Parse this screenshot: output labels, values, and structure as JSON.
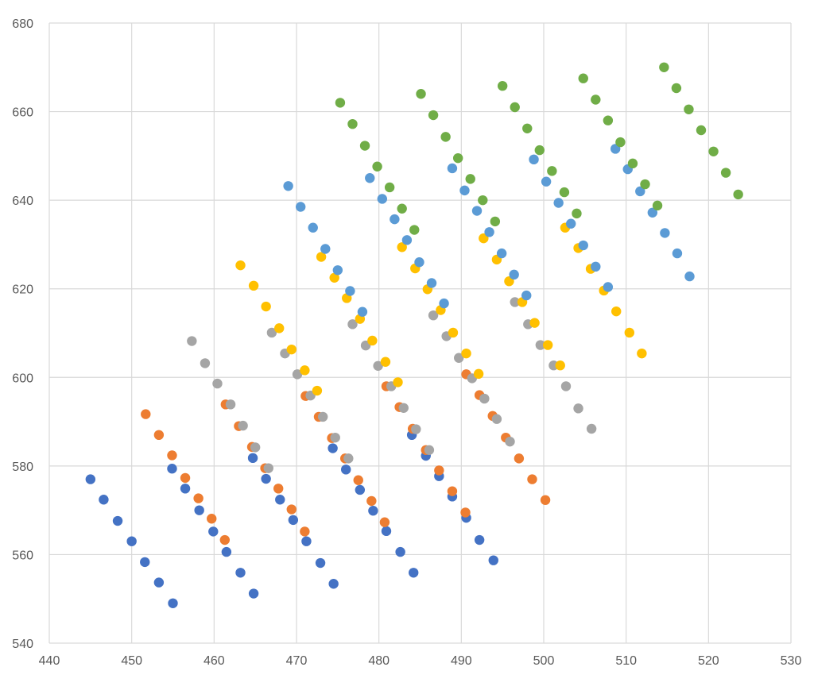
{
  "chart_data": {
    "type": "scatter",
    "title": "",
    "xlabel": "",
    "ylabel": "",
    "xlim": [
      440,
      530
    ],
    "ylim": [
      540,
      680
    ],
    "x_ticks": [
      440,
      450,
      460,
      470,
      480,
      490,
      500,
      510,
      520,
      530
    ],
    "y_ticks": [
      540,
      560,
      580,
      600,
      620,
      640,
      660,
      680
    ],
    "grid": true,
    "legend": "none",
    "series": [
      {
        "color": "#4472c4",
        "points": [
          [
            445.0,
            577.0
          ],
          [
            446.6,
            572.4
          ],
          [
            448.3,
            567.6
          ],
          [
            450.0,
            563.0
          ],
          [
            451.6,
            558.3
          ],
          [
            453.3,
            553.7
          ],
          [
            455.0,
            549.0
          ],
          [
            454.9,
            579.4
          ],
          [
            456.5,
            574.9
          ],
          [
            458.2,
            570.0
          ],
          [
            459.9,
            565.2
          ],
          [
            461.5,
            560.6
          ],
          [
            463.2,
            555.9
          ],
          [
            464.8,
            551.2
          ],
          [
            464.7,
            581.8
          ],
          [
            466.3,
            577.1
          ],
          [
            468.0,
            572.4
          ],
          [
            469.6,
            567.8
          ],
          [
            471.2,
            563.0
          ],
          [
            472.9,
            558.1
          ],
          [
            474.5,
            553.4
          ],
          [
            474.4,
            584.0
          ],
          [
            476.0,
            579.2
          ],
          [
            477.7,
            574.6
          ],
          [
            479.3,
            569.9
          ],
          [
            480.9,
            565.3
          ],
          [
            482.6,
            560.6
          ],
          [
            484.2,
            555.9
          ],
          [
            484.0,
            587.0
          ],
          [
            485.7,
            582.3
          ],
          [
            487.3,
            577.7
          ],
          [
            488.9,
            573.1
          ],
          [
            490.6,
            568.3
          ],
          [
            492.2,
            563.3
          ],
          [
            493.9,
            558.7
          ]
        ]
      },
      {
        "color": "#ed7d31",
        "points": [
          [
            451.7,
            591.7
          ],
          [
            453.3,
            587.0
          ],
          [
            454.9,
            582.4
          ],
          [
            456.5,
            577.3
          ],
          [
            458.1,
            572.7
          ],
          [
            459.7,
            568.1
          ],
          [
            461.3,
            563.3
          ],
          [
            461.4,
            593.9
          ],
          [
            463.0,
            589.0
          ],
          [
            464.6,
            584.3
          ],
          [
            466.2,
            579.5
          ],
          [
            467.8,
            574.9
          ],
          [
            469.4,
            570.2
          ],
          [
            471.0,
            565.2
          ],
          [
            471.1,
            595.8
          ],
          [
            472.7,
            591.1
          ],
          [
            474.3,
            586.3
          ],
          [
            475.9,
            581.7
          ],
          [
            477.5,
            576.8
          ],
          [
            479.1,
            572.1
          ],
          [
            480.7,
            567.3
          ],
          [
            480.9,
            598.0
          ],
          [
            482.5,
            593.3
          ],
          [
            484.1,
            588.4
          ],
          [
            485.7,
            583.6
          ],
          [
            487.3,
            579.0
          ],
          [
            488.9,
            574.3
          ],
          [
            490.5,
            569.5
          ],
          [
            490.6,
            600.7
          ],
          [
            492.2,
            596.0
          ],
          [
            493.8,
            591.3
          ],
          [
            495.4,
            586.4
          ],
          [
            497.0,
            581.7
          ],
          [
            498.6,
            577.0
          ],
          [
            500.2,
            572.3
          ]
        ]
      },
      {
        "color": "#a5a5a5",
        "points": [
          [
            457.3,
            608.2
          ],
          [
            458.9,
            603.2
          ],
          [
            460.4,
            598.6
          ],
          [
            462.0,
            593.9
          ],
          [
            463.5,
            589.1
          ],
          [
            465.0,
            584.2
          ],
          [
            466.6,
            579.5
          ],
          [
            467.0,
            610.1
          ],
          [
            468.6,
            605.4
          ],
          [
            470.1,
            600.7
          ],
          [
            471.7,
            595.9
          ],
          [
            473.2,
            591.1
          ],
          [
            474.7,
            586.4
          ],
          [
            476.3,
            581.7
          ],
          [
            476.8,
            612.0
          ],
          [
            478.4,
            607.2
          ],
          [
            479.9,
            602.6
          ],
          [
            481.5,
            598.0
          ],
          [
            483.0,
            593.1
          ],
          [
            484.5,
            588.3
          ],
          [
            486.1,
            583.6
          ],
          [
            486.6,
            614.0
          ],
          [
            488.2,
            609.3
          ],
          [
            489.7,
            604.4
          ],
          [
            491.3,
            599.8
          ],
          [
            492.8,
            595.2
          ],
          [
            494.3,
            590.6
          ],
          [
            495.9,
            585.5
          ],
          [
            496.5,
            617.0
          ],
          [
            498.1,
            612.0
          ],
          [
            499.6,
            607.3
          ],
          [
            501.2,
            602.7
          ],
          [
            502.7,
            598.0
          ],
          [
            504.2,
            593.0
          ],
          [
            505.8,
            588.4
          ]
        ]
      },
      {
        "color": "#ffc000",
        "points": [
          [
            463.2,
            625.3
          ],
          [
            464.8,
            620.7
          ],
          [
            466.3,
            616.0
          ],
          [
            467.9,
            611.1
          ],
          [
            469.4,
            606.3
          ],
          [
            471.0,
            601.6
          ],
          [
            472.5,
            597.0
          ],
          [
            473.0,
            627.2
          ],
          [
            474.6,
            622.5
          ],
          [
            476.1,
            617.9
          ],
          [
            477.7,
            613.2
          ],
          [
            479.2,
            608.3
          ],
          [
            480.8,
            603.5
          ],
          [
            482.3,
            598.9
          ],
          [
            482.8,
            629.4
          ],
          [
            484.4,
            624.6
          ],
          [
            485.9,
            619.9
          ],
          [
            487.5,
            615.2
          ],
          [
            489.0,
            610.1
          ],
          [
            490.6,
            605.4
          ],
          [
            492.1,
            600.8
          ],
          [
            492.7,
            631.4
          ],
          [
            494.3,
            626.6
          ],
          [
            495.8,
            621.7
          ],
          [
            497.4,
            617.0
          ],
          [
            498.9,
            612.3
          ],
          [
            500.5,
            607.3
          ],
          [
            502.0,
            602.7
          ],
          [
            502.6,
            633.8
          ],
          [
            504.2,
            629.2
          ],
          [
            505.7,
            624.5
          ],
          [
            507.3,
            619.6
          ],
          [
            508.8,
            614.9
          ],
          [
            510.4,
            610.1
          ],
          [
            511.9,
            605.4
          ]
        ]
      },
      {
        "color": "#5b9bd5",
        "points": [
          [
            469.0,
            643.2
          ],
          [
            470.5,
            638.5
          ],
          [
            472.0,
            633.8
          ],
          [
            473.5,
            629.0
          ],
          [
            475.0,
            624.2
          ],
          [
            476.5,
            619.5
          ],
          [
            478.0,
            614.8
          ],
          [
            478.9,
            645.0
          ],
          [
            480.4,
            640.3
          ],
          [
            481.9,
            635.7
          ],
          [
            483.4,
            631.0
          ],
          [
            484.9,
            626.0
          ],
          [
            486.4,
            621.3
          ],
          [
            487.9,
            616.7
          ],
          [
            488.9,
            647.2
          ],
          [
            490.4,
            642.2
          ],
          [
            491.9,
            637.6
          ],
          [
            493.4,
            632.8
          ],
          [
            494.9,
            628.0
          ],
          [
            496.4,
            623.2
          ],
          [
            497.9,
            618.5
          ],
          [
            498.8,
            649.2
          ],
          [
            500.3,
            644.2
          ],
          [
            501.8,
            639.4
          ],
          [
            503.3,
            634.7
          ],
          [
            504.8,
            629.8
          ],
          [
            506.3,
            625.0
          ],
          [
            507.8,
            620.4
          ],
          [
            508.7,
            651.6
          ],
          [
            510.2,
            647.0
          ],
          [
            511.7,
            642.0
          ],
          [
            513.2,
            637.2
          ],
          [
            514.7,
            632.6
          ],
          [
            516.2,
            628.0
          ],
          [
            517.7,
            622.8
          ]
        ]
      },
      {
        "color": "#70ad47",
        "points": [
          [
            475.3,
            662.0
          ],
          [
            476.8,
            657.2
          ],
          [
            478.3,
            652.3
          ],
          [
            479.8,
            647.6
          ],
          [
            481.3,
            642.9
          ],
          [
            482.8,
            638.1
          ],
          [
            484.3,
            633.3
          ],
          [
            485.1,
            664.0
          ],
          [
            486.6,
            659.2
          ],
          [
            488.1,
            654.3
          ],
          [
            489.6,
            649.5
          ],
          [
            491.1,
            644.8
          ],
          [
            492.6,
            640.0
          ],
          [
            494.1,
            635.2
          ],
          [
            495.0,
            665.8
          ],
          [
            496.5,
            661.0
          ],
          [
            498.0,
            656.2
          ],
          [
            499.5,
            651.3
          ],
          [
            501.0,
            646.6
          ],
          [
            502.5,
            641.8
          ],
          [
            504.0,
            637.0
          ],
          [
            504.8,
            667.5
          ],
          [
            506.3,
            662.7
          ],
          [
            507.8,
            658.0
          ],
          [
            509.3,
            653.1
          ],
          [
            510.8,
            648.3
          ],
          [
            512.3,
            643.6
          ],
          [
            513.8,
            638.8
          ],
          [
            514.6,
            670.0
          ],
          [
            516.1,
            665.3
          ],
          [
            517.6,
            660.5
          ],
          [
            519.1,
            655.8
          ],
          [
            520.6,
            651.0
          ],
          [
            522.1,
            646.2
          ],
          [
            523.6,
            641.3
          ]
        ]
      }
    ]
  }
}
